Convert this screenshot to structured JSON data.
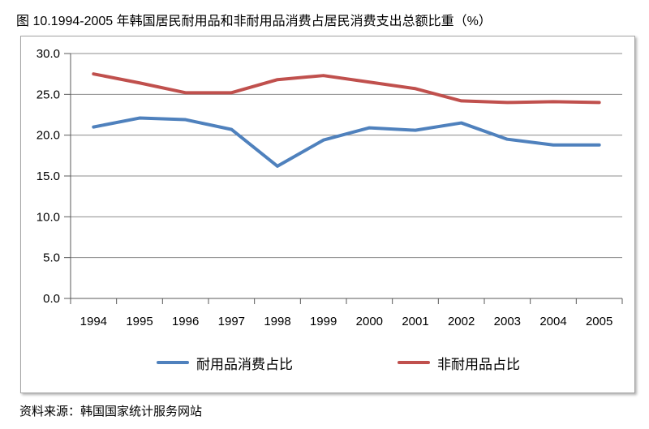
{
  "title": "图 10.1994-2005 年韩国居民耐用品和非耐用品消费占居民消费支出总额比重（%）",
  "source": "资料来源：韩国国家统计服务网站",
  "colors": {
    "durable_line": "#4F81BD",
    "nondurable_line": "#C0504D",
    "gridline": "#8C8C8C",
    "axis": "#595959",
    "tick_text": "#000000",
    "frame_border": "#A3A3A3"
  },
  "chart_data": {
    "type": "line",
    "title": "图 10.1994-2005 年韩国居民耐用品和非耐用品消费占居民消费支出总额比重（%）",
    "categories": [
      "1994",
      "1995",
      "1996",
      "1997",
      "1998",
      "1999",
      "2000",
      "2001",
      "2002",
      "2003",
      "2004",
      "2005"
    ],
    "series": [
      {
        "name": "耐用品消费占比",
        "color_key": "durable_line",
        "values": [
          21.0,
          22.1,
          21.9,
          20.7,
          16.2,
          19.4,
          20.9,
          20.6,
          21.5,
          19.5,
          18.8,
          18.8
        ]
      },
      {
        "name": "非耐用品占比",
        "color_key": "nondurable_line",
        "values": [
          27.5,
          26.4,
          25.2,
          25.2,
          26.8,
          27.3,
          26.5,
          25.7,
          24.2,
          24.0,
          24.1,
          24.0
        ]
      }
    ],
    "xlabel": "",
    "ylabel": "",
    "ylim": [
      0,
      30
    ],
    "y_tick_step": 5,
    "y_tick_labels": [
      "0.0",
      "5.0",
      "10.0",
      "15.0",
      "20.0",
      "25.0",
      "30.0"
    ],
    "grid": true,
    "legend_position": "bottom"
  }
}
